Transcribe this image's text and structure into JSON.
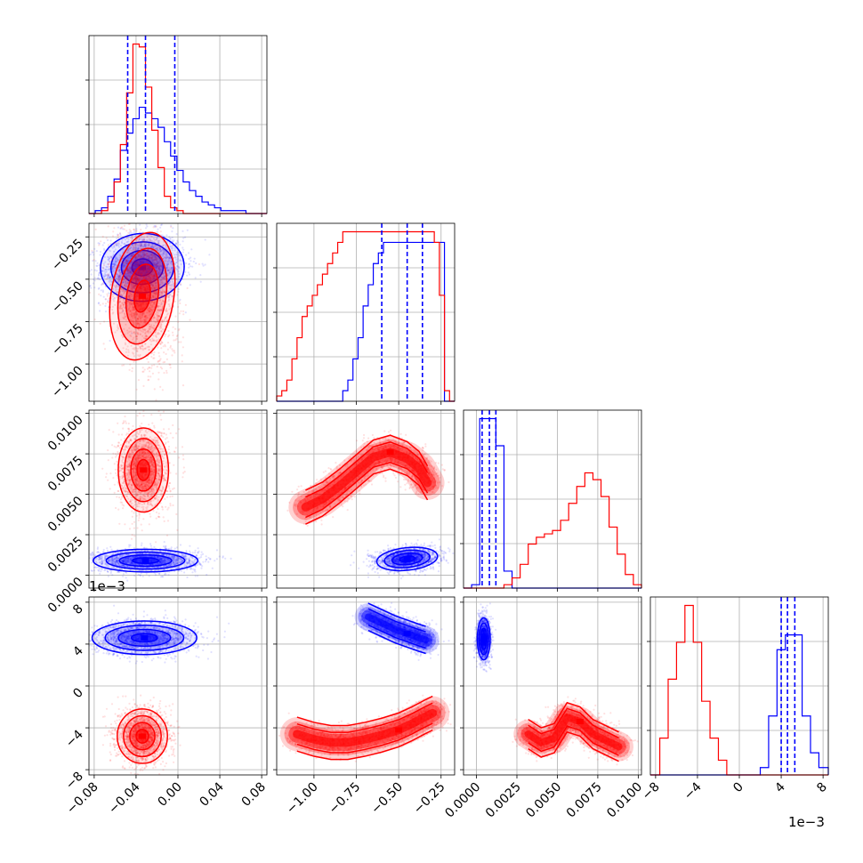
{
  "chart_data": {
    "type": "corner",
    "grid": true,
    "series": [
      {
        "name": "",
        "color": "#0000ff"
      },
      {
        "name": "",
        "color": "#ff0000"
      }
    ],
    "parameters": [
      {
        "index": 0,
        "range": [
          -0.085,
          0.085
        ],
        "ticks": [
          -0.08,
          -0.04,
          0.0,
          0.04,
          0.08
        ],
        "tick_labels": [
          "−0.08",
          "−0.04",
          "0.00",
          "0.04",
          "0.08"
        ],
        "offset_text": ""
      },
      {
        "index": 1,
        "range": [
          -1.22,
          -0.17
        ],
        "ticks": [
          -1.0,
          -0.75,
          -0.5,
          -0.25
        ],
        "tick_labels": [
          "−1.00",
          "−0.75",
          "−0.50",
          "−0.25"
        ],
        "offset_text": ""
      },
      {
        "index": 2,
        "range": [
          -0.0008,
          0.0102
        ],
        "ticks": [
          0.0,
          0.0025,
          0.005,
          0.0075,
          0.01
        ],
        "tick_labels": [
          "0.0000",
          "0.0025",
          "0.0050",
          "0.0075",
          "0.0100"
        ],
        "offset_text": ""
      },
      {
        "index": 3,
        "range": [
          -8.5,
          8.5
        ],
        "ticks": [
          -8,
          -4,
          0,
          4,
          8
        ],
        "tick_labels": [
          "−8",
          "−4",
          "0",
          "4",
          "8"
        ],
        "offset_text": "1e−3"
      }
    ],
    "quantile_lines": [
      {
        "param": 0,
        "series": "blue",
        "values": [
          -0.048,
          -0.031,
          -0.003
        ]
      },
      {
        "param": 1,
        "series": "blue",
        "values": [
          -0.6,
          -0.45,
          -0.36
        ]
      },
      {
        "param": 2,
        "series": "blue",
        "values": [
          0.00035,
          0.0008,
          0.0012
        ]
      },
      {
        "param": 3,
        "series": "blue",
        "values": [
          4.0,
          4.6,
          5.3
        ]
      }
    ],
    "histograms": [
      {
        "param": 0,
        "bin_edges": [
          -0.085,
          -0.079,
          -0.073,
          -0.067,
          -0.061,
          -0.055,
          -0.049,
          -0.043,
          -0.037,
          -0.031,
          -0.025,
          -0.019,
          -0.013,
          -0.007,
          -0.001,
          0.005,
          0.011,
          0.017,
          0.023,
          0.029,
          0.035,
          0.041,
          0.047,
          0.053,
          0.059,
          0.065,
          0.071,
          0.077,
          0.085
        ],
        "blue": [
          0,
          1,
          2,
          6,
          12,
          22,
          28,
          33,
          37,
          35,
          33,
          30,
          25,
          20,
          15,
          11,
          8,
          6,
          4,
          3,
          2,
          1,
          1,
          1,
          1,
          0,
          0,
          0
        ],
        "red": [
          0,
          0,
          1,
          4,
          11,
          24,
          42,
          59,
          58,
          44,
          29,
          16,
          6,
          2,
          1,
          0,
          0,
          0,
          0,
          0,
          0,
          0,
          0,
          0,
          0,
          0,
          0,
          0
        ]
      },
      {
        "param": 1,
        "bin_edges": [
          -1.22,
          -1.19,
          -1.16,
          -1.13,
          -1.1,
          -1.07,
          -1.04,
          -1.01,
          -0.98,
          -0.95,
          -0.92,
          -0.89,
          -0.86,
          -0.83,
          -0.8,
          -0.77,
          -0.74,
          -0.71,
          -0.68,
          -0.65,
          -0.62,
          -0.59,
          -0.56,
          -0.53,
          -0.5,
          -0.47,
          -0.44,
          -0.41,
          -0.38,
          -0.35,
          -0.32,
          -0.29,
          -0.26,
          -0.23,
          -0.2,
          -0.17
        ],
        "blue": [
          0,
          0,
          0,
          0,
          0,
          0,
          0,
          0,
          0,
          0,
          0,
          0,
          0,
          1,
          2,
          4,
          6,
          9,
          11,
          13,
          14,
          15,
          15,
          15,
          15,
          15,
          15,
          15,
          15,
          15,
          15,
          15,
          15,
          0,
          0
        ],
        "red": [
          0.5,
          1,
          2,
          4,
          6,
          8,
          9,
          10,
          11,
          12,
          13,
          14,
          15,
          16,
          16,
          16,
          16,
          16,
          16,
          16,
          16,
          16,
          16,
          16,
          16,
          16,
          16,
          16,
          16,
          16,
          16,
          15,
          10,
          1,
          0
        ]
      },
      {
        "param": 2,
        "bin_edges": [
          -0.0008,
          -0.0003,
          0.0002,
          0.0007,
          0.0012,
          0.0017,
          0.0022,
          0.0027,
          0.0032,
          0.0037,
          0.0042,
          0.0047,
          0.0052,
          0.0057,
          0.0062,
          0.0067,
          0.0072,
          0.0077,
          0.0082,
          0.0087,
          0.0092,
          0.0097,
          0.0102
        ],
        "blue": [
          0,
          1,
          50,
          50,
          42,
          5,
          0,
          0,
          0,
          0,
          0,
          0,
          0,
          0,
          0,
          0,
          0,
          0,
          0,
          0,
          0,
          0
        ],
        "red": [
          0,
          0,
          0,
          0,
          0,
          1,
          3,
          7,
          13,
          15,
          16,
          17,
          20,
          25,
          30,
          34,
          32,
          27,
          18,
          10,
          4,
          1
        ]
      },
      {
        "param": 3,
        "bin_edges": [
          -8.5,
          -7.6,
          -6.8,
          -6.0,
          -5.2,
          -4.4,
          -3.6,
          -2.8,
          -2.0,
          -1.2,
          -0.4,
          0.4,
          1.2,
          2.0,
          2.8,
          3.6,
          4.4,
          5.2,
          6.0,
          6.8,
          7.6,
          8.5
        ],
        "blue": [
          0,
          0,
          0,
          0,
          0,
          0,
          0,
          0,
          0,
          0,
          0,
          0,
          0,
          1,
          8,
          17,
          19,
          19,
          8,
          3,
          1
        ],
        "red": [
          0,
          5,
          13,
          18,
          23,
          18,
          10,
          5,
          2,
          0,
          0,
          0,
          0,
          0,
          0,
          0,
          0,
          0,
          0,
          0,
          0
        ]
      }
    ],
    "density_2d": [
      {
        "x_param": 0,
        "y_param": 1,
        "blue": {
          "center": [
            -0.034,
            -0.43
          ],
          "sigma": [
            0.02,
            0.1
          ],
          "rho": 0.1
        },
        "red": {
          "center": [
            -0.034,
            -0.6
          ],
          "sigma": [
            0.015,
            0.19
          ],
          "rho": -0.3
        }
      },
      {
        "x_param": 0,
        "y_param": 2,
        "blue": {
          "center": [
            -0.031,
            0.0009
          ],
          "sigma": [
            0.025,
            0.00035
          ],
          "rho": 0.0
        },
        "red": {
          "center": [
            -0.033,
            0.0065
          ],
          "sigma": [
            0.012,
            0.0013
          ],
          "rho": 0.0
        }
      },
      {
        "x_param": 0,
        "y_param": 3,
        "blue": {
          "center": [
            -0.032,
            4.6
          ],
          "sigma": [
            0.025,
            0.8
          ],
          "rho": 0.0
        },
        "red": {
          "center": [
            -0.034,
            -4.8
          ],
          "sigma": [
            0.012,
            1.3
          ],
          "rho": 0.0
        }
      },
      {
        "x_param": 1,
        "y_param": 2,
        "blue": {
          "center": [
            -0.45,
            0.001
          ],
          "sigma": [
            0.09,
            0.00035
          ],
          "rho": 0.2
        },
        "red": {
          "path_x": [
            -1.05,
            -0.95,
            -0.85,
            -0.75,
            -0.65,
            -0.55,
            -0.45,
            -0.38,
            -0.33
          ],
          "path_y": [
            0.0042,
            0.0047,
            0.0055,
            0.0064,
            0.0073,
            0.0076,
            0.0072,
            0.0066,
            0.0057
          ],
          "width": [
            0.05,
            0.0005
          ]
        }
      },
      {
        "x_param": 1,
        "y_param": 3,
        "blue": {
          "path_x": [
            -0.68,
            -0.6,
            -0.52,
            -0.45,
            -0.38,
            -0.34
          ],
          "path_y": [
            6.6,
            6.0,
            5.4,
            5.0,
            4.6,
            4.4
          ],
          "width": [
            0.04,
            0.6
          ]
        },
        "red": {
          "path_x": [
            -1.1,
            -1.0,
            -0.9,
            -0.8,
            -0.7,
            -0.6,
            -0.5,
            -0.42,
            -0.35,
            -0.3
          ],
          "path_y": [
            -4.6,
            -5.1,
            -5.4,
            -5.4,
            -5.1,
            -4.7,
            -4.2,
            -3.6,
            -3.0,
            -2.6
          ],
          "width": [
            0.05,
            0.7
          ]
        }
      },
      {
        "x_param": 2,
        "y_param": 3,
        "blue": {
          "center": [
            0.00045,
            4.5
          ],
          "sigma": [
            0.0002,
            1.0
          ],
          "rho": 0.0
        },
        "red": {
          "path_x": [
            0.0032,
            0.004,
            0.0048,
            0.0056,
            0.0064,
            0.0072,
            0.008,
            0.0088
          ],
          "path_y": [
            -4.6,
            -5.4,
            -5.0,
            -3.0,
            -3.4,
            -4.6,
            -5.2,
            -5.8
          ],
          "width": [
            0.00045,
            0.7
          ]
        }
      }
    ]
  }
}
